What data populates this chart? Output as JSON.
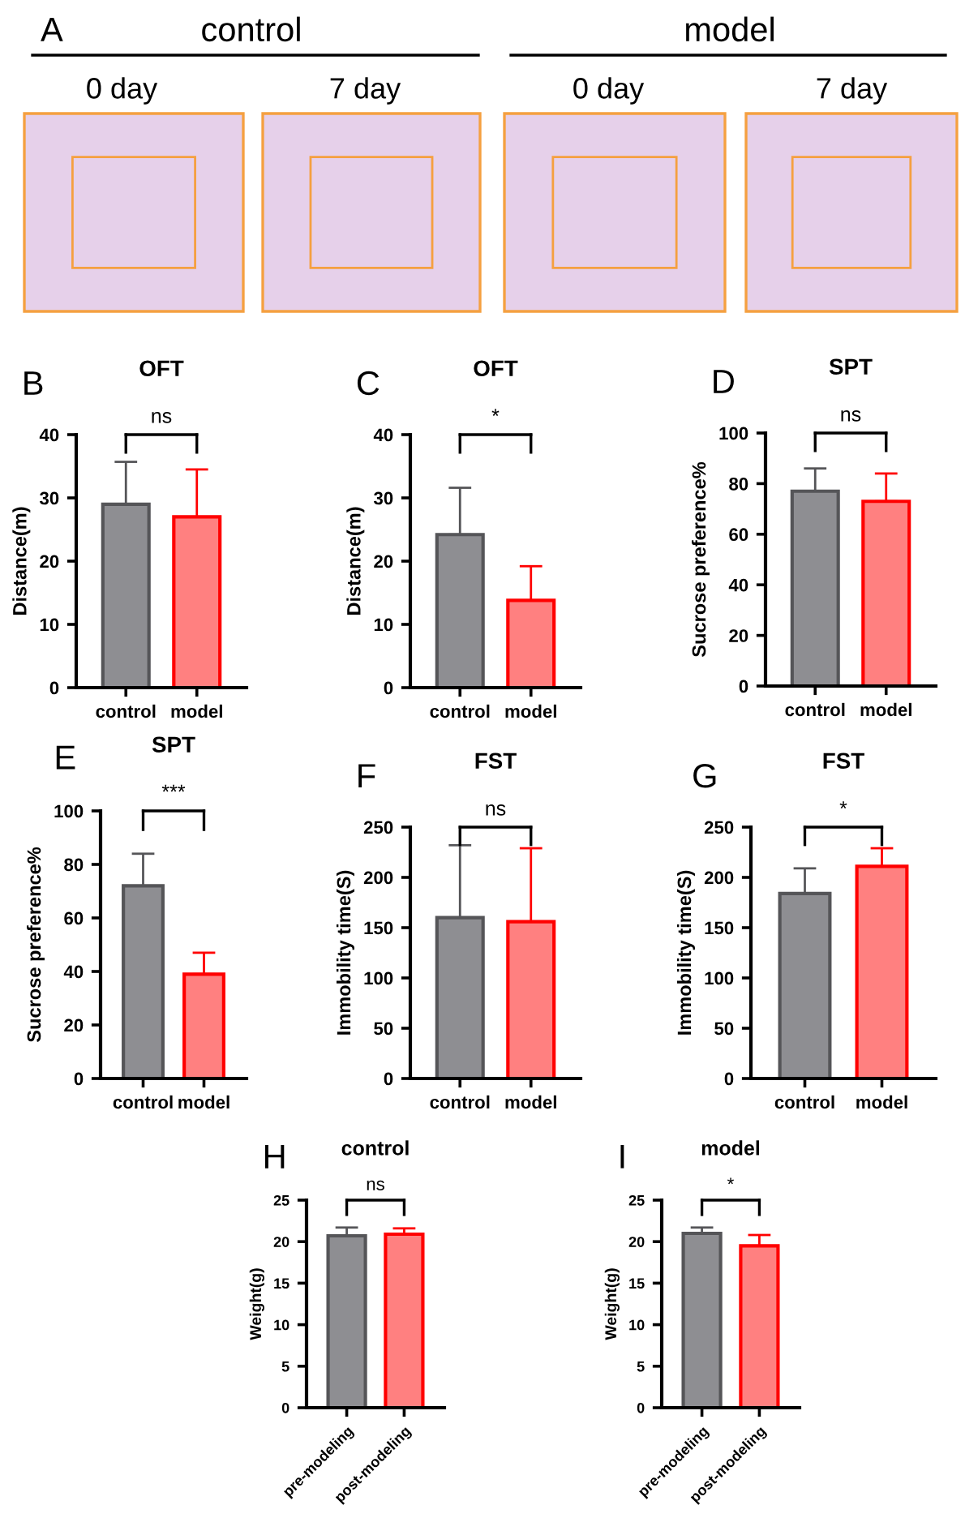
{
  "chart_data": [
    {
      "type": "other",
      "annotations": [
        "A",
        "control",
        "model",
        "0 day",
        "7 day",
        "0 day",
        "7 day"
      ]
    },
    {
      "type": "bar",
      "title": "OFT",
      "ylabel": "Distance(m)",
      "categories": [
        "control",
        "model"
      ],
      "values": [
        29,
        27
      ],
      "errors": [
        [
          29,
          35.7
        ],
        [
          27,
          34.5
        ]
      ],
      "colors": [
        "#8e8e92",
        "#ff8080"
      ],
      "ylim": [
        0,
        40
      ],
      "yticks": [
        0,
        10,
        20,
        30,
        40
      ],
      "annotations": [
        "B",
        "ns"
      ]
    },
    {
      "type": "bar",
      "title": "OFT",
      "ylabel": "Distance(m)",
      "categories": [
        "control",
        "model"
      ],
      "values": [
        24.2,
        13.8
      ],
      "errors": [
        [
          24.2,
          31.6
        ],
        [
          13.8,
          19.2
        ]
      ],
      "colors": [
        "#8e8e92",
        "#ff8080"
      ],
      "ylim": [
        0,
        40
      ],
      "yticks": [
        0,
        10,
        20,
        30,
        40
      ],
      "annotations": [
        "C",
        "*"
      ]
    },
    {
      "type": "bar",
      "title": "SPT",
      "ylabel": "Sucrose preference%",
      "categories": [
        "control",
        "model"
      ],
      "values": [
        77,
        73
      ],
      "errors": [
        [
          77,
          86
        ],
        [
          73,
          84
        ]
      ],
      "colors": [
        "#8e8e92",
        "#ff8080"
      ],
      "ylim": [
        0,
        100
      ],
      "yticks": [
        0,
        20,
        40,
        60,
        80,
        100
      ],
      "annotations": [
        "D",
        "ns"
      ]
    },
    {
      "type": "bar",
      "title": "SPT",
      "ylabel": "Sucrose preference%",
      "categories": [
        "control",
        "model"
      ],
      "values": [
        72,
        39
      ],
      "errors": [
        [
          72,
          84
        ],
        [
          39,
          47
        ]
      ],
      "colors": [
        "#8e8e92",
        "#ff8080"
      ],
      "ylim": [
        0,
        100
      ],
      "yticks": [
        0,
        20,
        40,
        60,
        80,
        100
      ],
      "annotations": [
        "E",
        "***"
      ]
    },
    {
      "type": "bar",
      "title": "FST",
      "ylabel": "Immobility time(S)",
      "categories": [
        "control",
        "model"
      ],
      "values": [
        160,
        156
      ],
      "errors": [
        [
          160,
          232
        ],
        [
          156,
          229
        ]
      ],
      "colors": [
        "#8e8e92",
        "#ff8080"
      ],
      "ylim": [
        0,
        250
      ],
      "yticks": [
        0,
        50,
        100,
        150,
        200,
        250
      ],
      "annotations": [
        "F",
        "ns"
      ]
    },
    {
      "type": "bar",
      "title": "FST",
      "ylabel": "Immobility time(S)",
      "categories": [
        "control",
        "model"
      ],
      "values": [
        184,
        211
      ],
      "errors": [
        [
          184,
          209
        ],
        [
          211,
          229
        ]
      ],
      "colors": [
        "#8e8e92",
        "#ff8080"
      ],
      "ylim": [
        0,
        250
      ],
      "yticks": [
        0,
        50,
        100,
        150,
        200,
        250
      ],
      "annotations": [
        "G",
        "*"
      ]
    },
    {
      "type": "bar",
      "title": "control",
      "ylabel": "Weight(g)",
      "categories": [
        "pre-modeling",
        "post-modeling"
      ],
      "values": [
        20.7,
        20.9
      ],
      "errors": [
        [
          20.7,
          21.7
        ],
        [
          20.9,
          21.6
        ]
      ],
      "colors": [
        "#8e8e92",
        "#ff8080"
      ],
      "ylim": [
        0,
        25
      ],
      "yticks": [
        0,
        5,
        10,
        15,
        20,
        25
      ],
      "annotations": [
        "H",
        "ns"
      ]
    },
    {
      "type": "bar",
      "title": "model",
      "ylabel": "Weight(g)",
      "categories": [
        "pre-modeling",
        "post-modeling"
      ],
      "values": [
        21.0,
        19.5
      ],
      "errors": [
        [
          21.0,
          21.7
        ],
        [
          19.5,
          20.8
        ]
      ],
      "colors": [
        "#8e8e92",
        "#ff8080"
      ],
      "ylim": [
        0,
        25
      ],
      "yticks": [
        0,
        5,
        10,
        15,
        20,
        25
      ],
      "annotations": [
        "I",
        "*"
      ]
    }
  ]
}
